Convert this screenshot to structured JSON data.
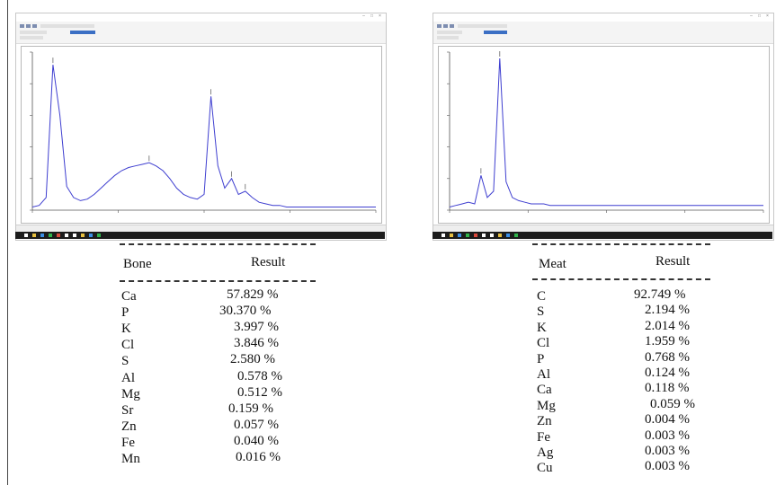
{
  "chart_data": [
    {
      "type": "table",
      "panel": "left",
      "columns": [
        "Bone",
        "Result"
      ],
      "rows": [
        {
          "element": "Ca",
          "value": "57.829 %"
        },
        {
          "element": "P",
          "value": "30.370 %"
        },
        {
          "element": "K",
          "value": "3.997 %"
        },
        {
          "element": "Cl",
          "value": "3.846 %"
        },
        {
          "element": "S",
          "value": "2.580 %"
        },
        {
          "element": "Al",
          "value": "0.578 %"
        },
        {
          "element": "Mg",
          "value": "0.512 %"
        },
        {
          "element": "Sr",
          "value": "0.159 %"
        },
        {
          "element": "Zn",
          "value": "0.057 %"
        },
        {
          "element": "Fe",
          "value": "0.040 %"
        },
        {
          "element": "Mn",
          "value": "0.016 %"
        }
      ],
      "spectrum": {
        "type": "line",
        "color": "#3f3fd0",
        "x": [
          0,
          2,
          4,
          6,
          8,
          10,
          12,
          14,
          16,
          18,
          20,
          22,
          24,
          26,
          28,
          30,
          32,
          34,
          36,
          38,
          40,
          42,
          44,
          46,
          48,
          50,
          52,
          54,
          56,
          58,
          60,
          62,
          64,
          66,
          68,
          70,
          72,
          74,
          76,
          78,
          80,
          82,
          84,
          86,
          88,
          90,
          92,
          94,
          96,
          98,
          100
        ],
        "y": [
          2,
          3,
          8,
          92,
          60,
          15,
          8,
          6,
          7,
          10,
          14,
          18,
          22,
          25,
          27,
          28,
          29,
          30,
          28,
          25,
          20,
          14,
          10,
          8,
          7,
          10,
          72,
          28,
          14,
          20,
          10,
          12,
          8,
          5,
          4,
          3,
          3,
          2,
          2,
          2,
          2,
          2,
          2,
          2,
          2,
          2,
          2,
          2,
          2,
          2,
          2
        ]
      }
    },
    {
      "type": "table",
      "panel": "right",
      "columns": [
        "Meat",
        "Result"
      ],
      "rows": [
        {
          "element": "C",
          "value": "92.749 %"
        },
        {
          "element": "S",
          "value": "2.194 %"
        },
        {
          "element": "K",
          "value": "2.014 %"
        },
        {
          "element": "Cl",
          "value": "1.959 %"
        },
        {
          "element": "P",
          "value": "0.768 %"
        },
        {
          "element": "Al",
          "value": "0.124 %"
        },
        {
          "element": "Ca",
          "value": "0.118 %"
        },
        {
          "element": "Mg",
          "value": "0.059 %"
        },
        {
          "element": "Zn",
          "value": "0.004 %"
        },
        {
          "element": "Fe",
          "value": "0.003 %"
        },
        {
          "element": "Ag",
          "value": "0.003 %"
        },
        {
          "element": "Cu",
          "value": "0.003 %"
        }
      ],
      "spectrum": {
        "type": "line",
        "color": "#3f3fd0",
        "x": [
          0,
          2,
          4,
          6,
          8,
          10,
          12,
          14,
          16,
          18,
          20,
          22,
          24,
          26,
          28,
          30,
          32,
          34,
          36,
          38,
          40,
          42,
          44,
          46,
          48,
          50,
          52,
          54,
          56,
          58,
          60,
          62,
          64,
          66,
          68,
          70,
          72,
          74,
          76,
          78,
          80,
          82,
          84,
          86,
          88,
          90,
          92,
          94,
          96,
          98,
          100
        ],
        "y": [
          2,
          3,
          4,
          5,
          4,
          22,
          8,
          12,
          96,
          18,
          8,
          6,
          5,
          4,
          4,
          4,
          3,
          3,
          3,
          3,
          3,
          3,
          3,
          3,
          3,
          3,
          3,
          3,
          3,
          3,
          3,
          3,
          3,
          3,
          3,
          3,
          3,
          3,
          3,
          3,
          3,
          3,
          3,
          3,
          3,
          3,
          3,
          3,
          3,
          3,
          3
        ]
      }
    }
  ]
}
